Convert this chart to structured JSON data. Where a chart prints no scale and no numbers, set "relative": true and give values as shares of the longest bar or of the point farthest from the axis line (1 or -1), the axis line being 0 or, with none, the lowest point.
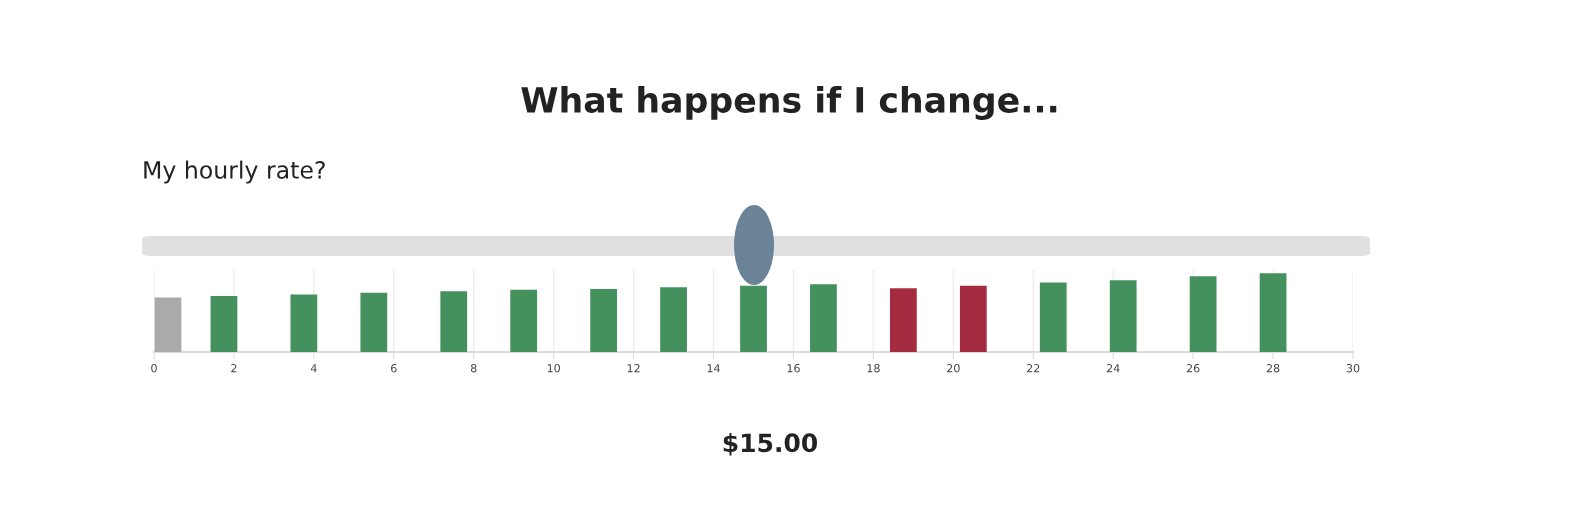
{
  "chart_data": {
    "type": "bar",
    "title": "What happens if I change...",
    "subtitle": "My hourly rate?",
    "annotations": [
      "$15.00"
    ],
    "x": [
      0.35,
      1.75,
      3.75,
      5.5,
      7.5,
      9.25,
      11.25,
      13,
      15,
      16.75,
      18.75,
      20.5,
      22.5,
      24.25,
      26.25,
      28
    ],
    "values": [
      0.69,
      0.71,
      0.73,
      0.75,
      0.77,
      0.79,
      0.8,
      0.82,
      0.84,
      0.86,
      0.81,
      0.84,
      0.88,
      0.91,
      0.96,
      1.0
    ],
    "colors": [
      "#aaaaaa",
      "#45915e",
      "#45915e",
      "#45915e",
      "#45915e",
      "#45915e",
      "#45915e",
      "#45915e",
      "#45915e",
      "#45915e",
      "#a52c40",
      "#a52c40",
      "#45915e",
      "#45915e",
      "#45915e",
      "#45915e"
    ],
    "relative": true,
    "xlim": [
      0,
      30
    ],
    "xticks": [
      0,
      2,
      4,
      6,
      8,
      10,
      12,
      14,
      16,
      18,
      20,
      22,
      24,
      26,
      28,
      30
    ],
    "grid": "x",
    "tick_labels": "x"
  }
}
